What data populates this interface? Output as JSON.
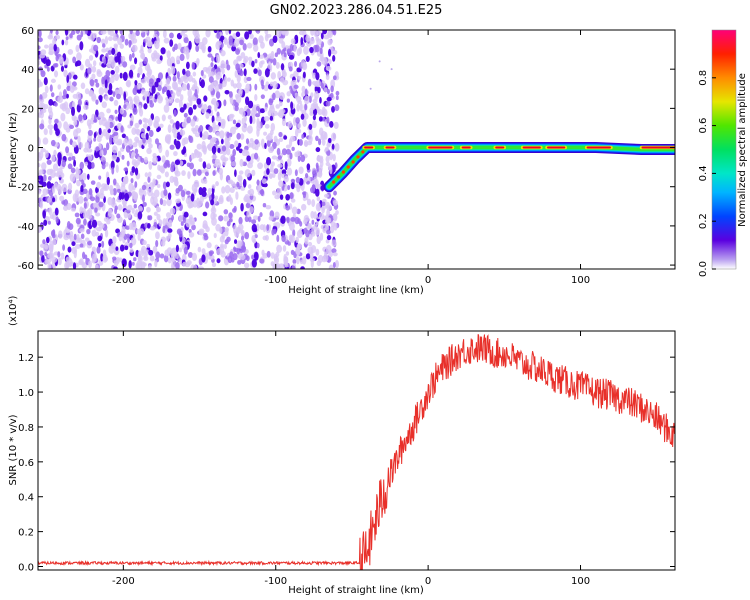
{
  "title": "GN02.2023.286.04.51.E25",
  "colors": {
    "snr_line": "#e8302a",
    "track_core": "#e8002a",
    "noise_dark": "#4b00e0",
    "noise_light": "#d8c6f5",
    "frame": "#000000"
  },
  "chart_data": [
    {
      "type": "heatmap",
      "title": "GN02.2023.286.04.51.E25",
      "xlabel": "Height of straight line (km)",
      "ylabel": "Frequency (Hz)",
      "xlim": [
        -256,
        162
      ],
      "ylim": [
        -62,
        60
      ],
      "x_ticks": [
        -200,
        -100,
        0,
        100
      ],
      "x_tick_labels": [
        "-200",
        "-100",
        "0",
        "100"
      ],
      "y_ticks": [
        -60,
        -40,
        -20,
        0,
        20,
        40,
        60
      ],
      "y_tick_labels": [
        "-60",
        "-40",
        "-20",
        "0",
        "20",
        "40",
        "60"
      ],
      "noise_region_x": [
        -256,
        -62
      ],
      "track": {
        "x": [
          -65,
          -56,
          -48,
          -40,
          -30,
          -15,
          0,
          20,
          50,
          80,
          110,
          140,
          162
        ],
        "y": [
          -20,
          -13,
          -6,
          0,
          0,
          0,
          0,
          0,
          0,
          0,
          0,
          -1,
          -1
        ]
      },
      "colorbar": {
        "label": "Normalized spectral amplitude",
        "range": [
          0.0,
          1.0
        ],
        "ticks": [
          0.0,
          0.2,
          0.4,
          0.6,
          0.8
        ],
        "tick_labels": [
          "0.0",
          "0.2",
          "0.4",
          "0.6",
          "0.8"
        ]
      },
      "grid": false
    },
    {
      "type": "line",
      "xlabel": "Height of straight line (km)",
      "ylabel": "SNR (10 * v/v)",
      "y_multiplier": "(x10⁴)",
      "xlim": [
        -256,
        162
      ],
      "ylim": [
        -0.02,
        1.35
      ],
      "x_ticks": [
        -200,
        -100,
        0,
        100
      ],
      "x_tick_labels": [
        "-200",
        "-100",
        "0",
        "100"
      ],
      "y_ticks": [
        0.0,
        0.2,
        0.4,
        0.6,
        0.8,
        1.0,
        1.2
      ],
      "y_tick_labels": [
        "0.0",
        "0.2",
        "0.4",
        "0.6",
        "0.8",
        "1.0",
        "1.2"
      ],
      "grid": false,
      "series": [
        {
          "x": [
            -256,
            -200,
            -100,
            -45,
            -40,
            -35,
            -30,
            -25,
            -20,
            -15,
            -10,
            -5,
            0,
            5,
            10,
            15,
            20,
            25,
            30,
            35,
            40,
            45,
            50,
            55,
            60,
            70,
            80,
            90,
            100,
            110,
            120,
            130,
            140,
            150,
            155,
            160,
            162
          ],
          "y": [
            0.02,
            0.02,
            0.02,
            0.02,
            0.08,
            0.25,
            0.4,
            0.52,
            0.62,
            0.72,
            0.8,
            0.9,
            1.0,
            1.08,
            1.14,
            1.18,
            1.22,
            1.24,
            1.25,
            1.25,
            1.24,
            1.22,
            1.22,
            1.2,
            1.17,
            1.14,
            1.1,
            1.06,
            1.03,
            1.0,
            0.98,
            0.95,
            0.91,
            0.85,
            0.8,
            0.76,
            0.75
          ]
        }
      ]
    }
  ]
}
